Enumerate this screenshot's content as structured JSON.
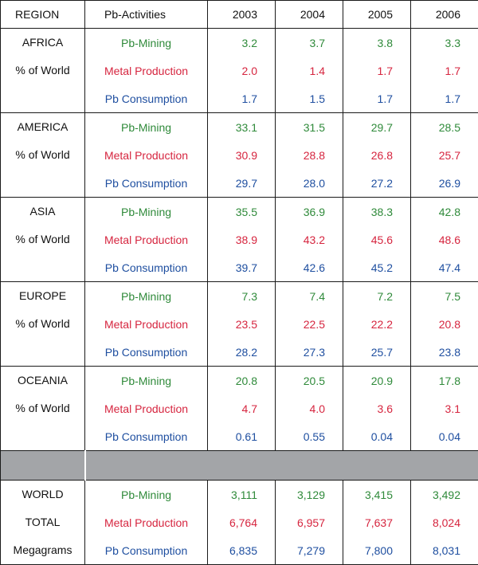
{
  "header": {
    "region": "REGION",
    "activities": "Pb-Activities",
    "years": [
      "2003",
      "2004",
      "2005",
      "2006"
    ]
  },
  "activity_labels": [
    "Pb-Mining",
    "Metal Production",
    "Pb Consumption"
  ],
  "colors": {
    "mining": "#2f8a3a",
    "production": "#d6253f",
    "consumption": "#1f4fa0"
  },
  "regions": [
    {
      "name_lines": [
        "AFRICA",
        "% of World"
      ],
      "rows": [
        [
          "3.2",
          "3.7",
          "3.8",
          "3.3"
        ],
        [
          "2.0",
          "1.4",
          "1.7",
          "1.7"
        ],
        [
          "1.7",
          "1.5",
          "1.7",
          "1.7"
        ]
      ]
    },
    {
      "name_lines": [
        "AMERICA",
        "% of World"
      ],
      "rows": [
        [
          "33.1",
          "31.5",
          "29.7",
          "28.5"
        ],
        [
          "30.9",
          "28.8",
          "26.8",
          "25.7"
        ],
        [
          "29.7",
          "28.0",
          "27.2",
          "26.9"
        ]
      ]
    },
    {
      "name_lines": [
        "ASIA",
        "% of World"
      ],
      "rows": [
        [
          "35.5",
          "36.9",
          "38.3",
          "42.8"
        ],
        [
          "38.9",
          "43.2",
          "45.6",
          "48.6"
        ],
        [
          "39.7",
          "42.6",
          "45.2",
          "47.4"
        ]
      ]
    },
    {
      "name_lines": [
        "EUROPE",
        "% of World"
      ],
      "rows": [
        [
          "7.3",
          "7.4",
          "7.2",
          "7.5"
        ],
        [
          "23.5",
          "22.5",
          "22.2",
          "20.8"
        ],
        [
          "28.2",
          "27.3",
          "25.7",
          "23.8"
        ]
      ]
    },
    {
      "name_lines": [
        "OCEANIA",
        "% of World"
      ],
      "rows": [
        [
          "20.8",
          "20.5",
          "20.9",
          "17.8"
        ],
        [
          "4.7",
          "4.0",
          "3.6",
          "3.1"
        ],
        [
          "0.61",
          "0.55",
          "0.04",
          "0.04"
        ]
      ]
    }
  ],
  "world": {
    "name_lines": [
      "WORLD",
      "TOTAL",
      "Megagrams"
    ],
    "rows": [
      [
        "3,111",
        "3,129",
        "3,415",
        "3,492"
      ],
      [
        "6,764",
        "6,957",
        "7,637",
        "8,024"
      ],
      [
        "6,835",
        "7,279",
        "7,800",
        "8,031"
      ]
    ]
  }
}
